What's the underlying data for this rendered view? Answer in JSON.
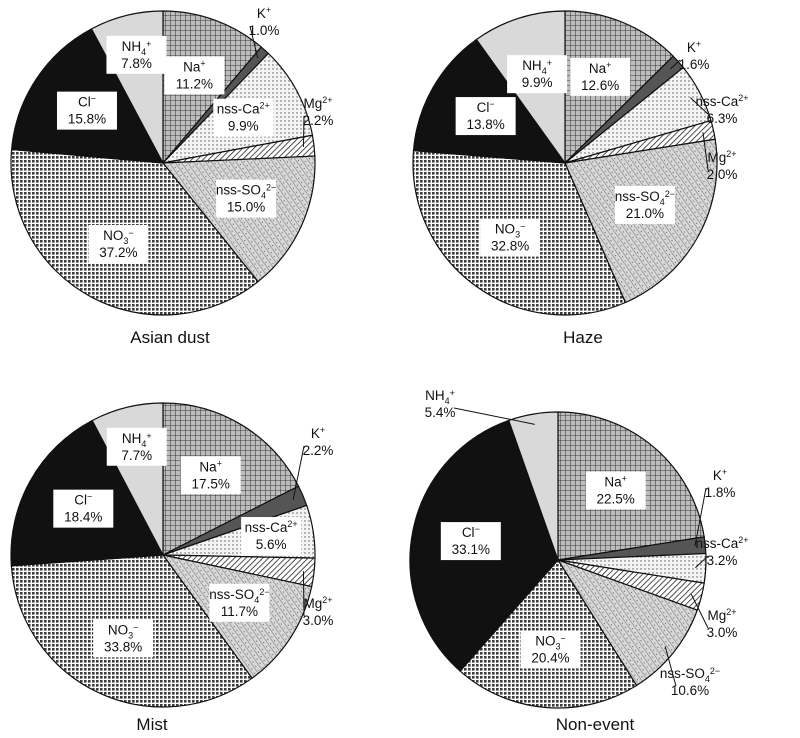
{
  "chart_data": [
    {
      "type": "pie",
      "caption": "Asian dust",
      "slices": [
        {
          "label": "Na+",
          "value": 11.2,
          "value_label": "11.2%",
          "fill": "check"
        },
        {
          "label": "K+",
          "value": 1.0,
          "value_label": "1.0%",
          "fill": "dark"
        },
        {
          "label": "nss-Ca2+",
          "value": 9.9,
          "value_label": "9.9%",
          "fill": "dots"
        },
        {
          "label": "Mg2+",
          "value": 2.2,
          "value_label": "2.2%",
          "fill": "hatch"
        },
        {
          "label": "nss-SO42−",
          "value": 15.0,
          "value_label": "15.0%",
          "fill": "diag"
        },
        {
          "label": "NO3−",
          "value": 37.2,
          "value_label": "37.2%",
          "fill": "grid"
        },
        {
          "label": "Cl−",
          "value": 15.8,
          "value_label": "15.8%",
          "fill": "black"
        },
        {
          "label": "NH4+",
          "value": 7.8,
          "value_label": "7.8%",
          "fill": "light"
        }
      ]
    },
    {
      "type": "pie",
      "caption": "Haze",
      "slices": [
        {
          "label": "Na+",
          "value": 12.6,
          "value_label": "12.6%",
          "fill": "check"
        },
        {
          "label": "K+",
          "value": 1.6,
          "value_label": "1.6%",
          "fill": "dark"
        },
        {
          "label": "nss-Ca2+",
          "value": 6.3,
          "value_label": "6.3%",
          "fill": "dots"
        },
        {
          "label": "Mg2+",
          "value": 2.0,
          "value_label": "2.0%",
          "fill": "hatch"
        },
        {
          "label": "nss-SO42−",
          "value": 21.0,
          "value_label": "21.0%",
          "fill": "diag"
        },
        {
          "label": "NO3−",
          "value": 32.8,
          "value_label": "32.8%",
          "fill": "grid"
        },
        {
          "label": "Cl−",
          "value": 13.8,
          "value_label": "13.8%",
          "fill": "black"
        },
        {
          "label": "NH4+",
          "value": 9.9,
          "value_label": "9.9%",
          "fill": "light"
        }
      ]
    },
    {
      "type": "pie",
      "caption": "Mist",
      "slices": [
        {
          "label": "Na+",
          "value": 17.5,
          "value_label": "17.5%",
          "fill": "check"
        },
        {
          "label": "K+",
          "value": 2.2,
          "value_label": "2.2%",
          "fill": "dark"
        },
        {
          "label": "nss-Ca2+",
          "value": 5.6,
          "value_label": "5.6%",
          "fill": "dots"
        },
        {
          "label": "Mg2+",
          "value": 3.0,
          "value_label": "3.0%",
          "fill": "hatch"
        },
        {
          "label": "nss-SO42−",
          "value": 11.7,
          "value_label": "11.7%",
          "fill": "diag"
        },
        {
          "label": "NO3−",
          "value": 33.8,
          "value_label": "33.8%",
          "fill": "grid"
        },
        {
          "label": "Cl−",
          "value": 18.4,
          "value_label": "18.4%",
          "fill": "black"
        },
        {
          "label": "NH4+",
          "value": 7.7,
          "value_label": "7.7%",
          "fill": "light"
        }
      ]
    },
    {
      "type": "pie",
      "caption": "Non-event",
      "slices": [
        {
          "label": "Na+",
          "value": 22.5,
          "value_label": "22.5%",
          "fill": "check"
        },
        {
          "label": "K+",
          "value": 1.8,
          "value_label": "1.8%",
          "fill": "dark"
        },
        {
          "label": "nss-Ca2+",
          "value": 3.2,
          "value_label": "3.2%",
          "fill": "dots"
        },
        {
          "label": "Mg2+",
          "value": 3.0,
          "value_label": "3.0%",
          "fill": "hatch"
        },
        {
          "label": "nss-SO42−",
          "value": 10.6,
          "value_label": "10.6%",
          "fill": "diag"
        },
        {
          "label": "NO3−",
          "value": 20.4,
          "value_label": "20.4%",
          "fill": "grid"
        },
        {
          "label": "Cl−",
          "value": 33.1,
          "value_label": "33.1%",
          "fill": "black"
        },
        {
          "label": "NH4+",
          "value": 5.4,
          "value_label": "5.4%",
          "fill": "light"
        }
      ]
    }
  ]
}
